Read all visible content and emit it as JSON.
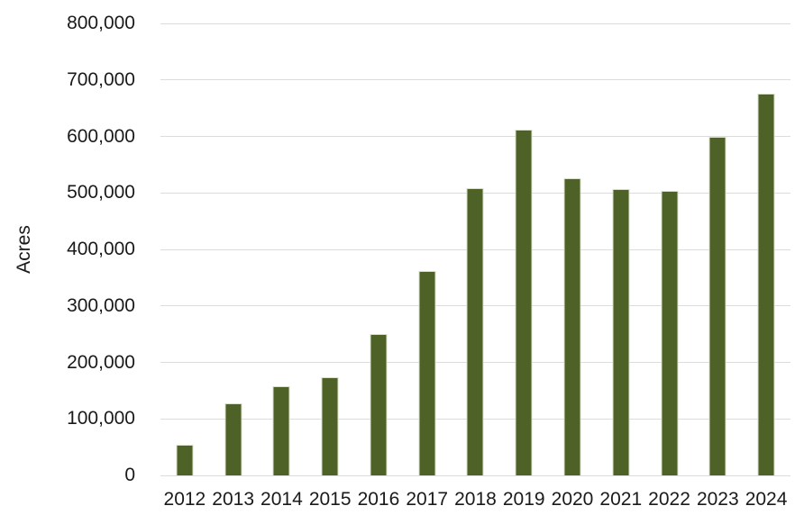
{
  "chart_data": {
    "type": "bar",
    "title": "",
    "xlabel": "",
    "ylabel": "Acres",
    "categories": [
      "2012",
      "2013",
      "2014",
      "2015",
      "2016",
      "2017",
      "2018",
      "2019",
      "2020",
      "2021",
      "2022",
      "2023",
      "2024"
    ],
    "values": [
      54000,
      127000,
      157000,
      173000,
      250000,
      362000,
      508000,
      612000,
      526000,
      507000,
      504000,
      600000,
      675000
    ],
    "ylim": [
      0,
      800000
    ],
    "ytick_interval": 100000,
    "yticks": {
      "values": [
        0,
        100000,
        200000,
        300000,
        400000,
        500000,
        600000,
        700000,
        800000
      ],
      "labels": [
        "0",
        "100,000",
        "200,000",
        "300,000",
        "400,000",
        "500,000",
        "600,000",
        "700,000",
        "800,000"
      ]
    },
    "grid": "horizontal",
    "legend": "none",
    "colors": {
      "bar_fill": "#4e6228",
      "bar_edge": "#d9e0c8",
      "gridline": "#dcdcdc",
      "text": "#1a1a1a",
      "background": "#ffffff"
    }
  }
}
